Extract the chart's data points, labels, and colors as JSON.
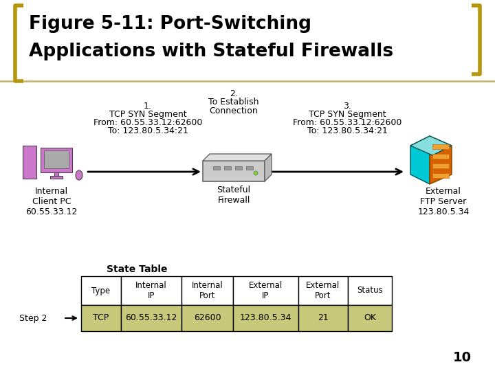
{
  "title_line1": "Figure 5-11: Port-Switching",
  "title_line2": "Applications with Stateful Firewalls",
  "title_color": "#000000",
  "bg_color": "#ffffff",
  "bracket_color": "#b8960c",
  "separator_color": "#c8b870",
  "label1_num": "1.",
  "label1_line1": "TCP SYN Segment",
  "label1_line2": "From: 60.55.33.12:62600",
  "label1_line3": "To: 123.80.5.34:21",
  "label2_num": "2.",
  "label2_line1": "To Establish",
  "label2_line2": "Connection",
  "label3_num": "3.",
  "label3_line1": "TCP SYN Segment",
  "label3_line2": "From: 60.55.33.12:62600",
  "label3_line3": "To: 123.80.5.34:21",
  "internal_label": "Internal\nClient PC\n60.55.33.12",
  "firewall_label": "Stateful\nFirewall",
  "external_label": "External\nFTP Server\n123.80.5.34",
  "state_table_label": "State Table",
  "step_label": "Step 2",
  "table_headers": [
    "Type",
    "Internal\nIP",
    "Internal\nPort",
    "External\nIP",
    "External\nPort",
    "Status"
  ],
  "table_row": [
    "TCP",
    "60.55.33.12",
    "62600",
    "123.80.5.34",
    "21",
    "OK"
  ],
  "table_header_bg": "#ffffff",
  "table_row_bg": "#c8c87a",
  "table_border_color": "#000000",
  "arrow_color": "#000000",
  "pc_color": "#cc77cc",
  "pc_screen_color": "#aaaaaa",
  "fw_color": "#cccccc",
  "srv_cyan": "#00c8d4",
  "srv_orange": "#d46000",
  "srv_yellow": "#f0a030"
}
